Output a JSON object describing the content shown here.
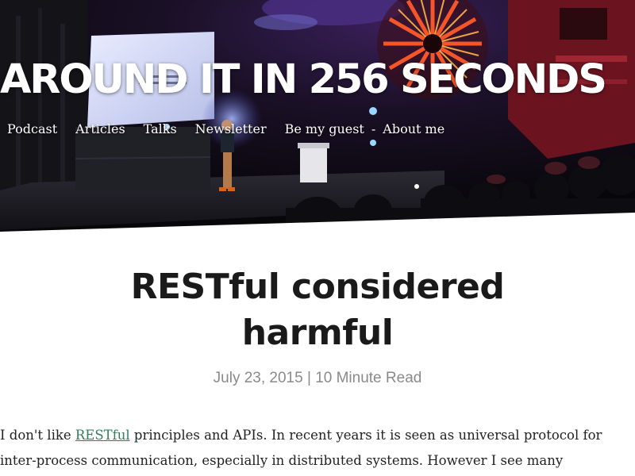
{
  "site": {
    "title": "AROUND IT IN 256 SECONDS"
  },
  "nav": {
    "items": [
      {
        "label": "Podcast"
      },
      {
        "label": "Articles"
      },
      {
        "label": "Talks"
      },
      {
        "label": "Newsletter"
      },
      {
        "label": "Be my guest"
      },
      {
        "label": "About me"
      }
    ],
    "separator": "-"
  },
  "article": {
    "title_line1": "RESTful considered",
    "title_line2": "harmful",
    "date": "July 23, 2015",
    "meta_separator": "|",
    "read_time": "10 Minute Read",
    "body": {
      "line1_before_link": "I don't like ",
      "link_text": "RESTful",
      "line1_after_link": " principles and APIs. In recent years it is seen as universal protocol for",
      "line2": "inter-process communication, especially in distributed systems. However I see many"
    }
  },
  "colors": {
    "link": "#2e7d5b",
    "meta": "#8a8a8a",
    "heading": "#1a1a1a",
    "hero_dark": "#0b0a12"
  }
}
